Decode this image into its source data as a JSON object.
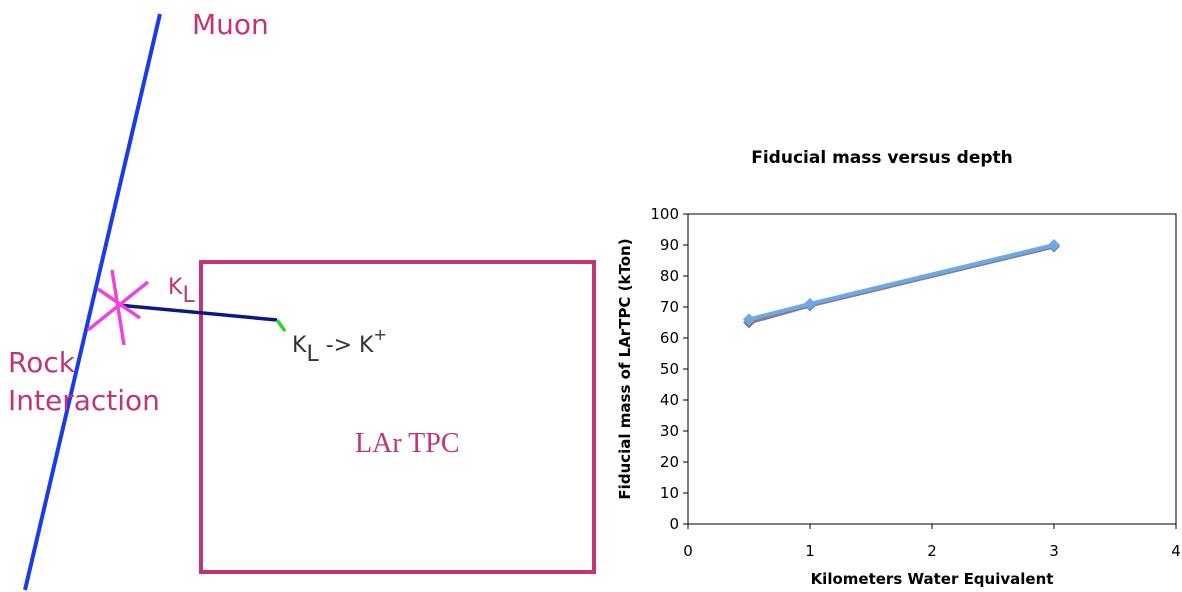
{
  "diagram": {
    "muon": "Muon",
    "kaon": {
      "main": "K",
      "sub": "L"
    },
    "rock": [
      "Rock",
      "Interaction"
    ],
    "decay": {
      "main": "K",
      "sub": "L",
      "arrow": " -> K",
      "sup": "+"
    },
    "detector": "LAr TPC"
  },
  "chart_data": {
    "type": "line",
    "title": "Fiducial mass versus depth",
    "x_label": "Kilometers Water Equivalent",
    "y_label": "Fiducial mass of LArTPC (kTon)",
    "x": [
      0.5,
      1,
      3
    ],
    "series": [
      {
        "color": "#808080",
        "values": [
          65,
          70.5,
          89.5
        ]
      },
      {
        "color": "#6fa8e8",
        "values": [
          66,
          71,
          90
        ]
      }
    ],
    "xlim": [
      0,
      4
    ],
    "xticks": [
      0,
      1,
      2,
      3,
      4
    ],
    "ylim": [
      0,
      100
    ],
    "yticks": [
      0,
      10,
      20,
      30,
      40,
      50,
      60,
      70,
      80,
      90,
      100
    ]
  }
}
